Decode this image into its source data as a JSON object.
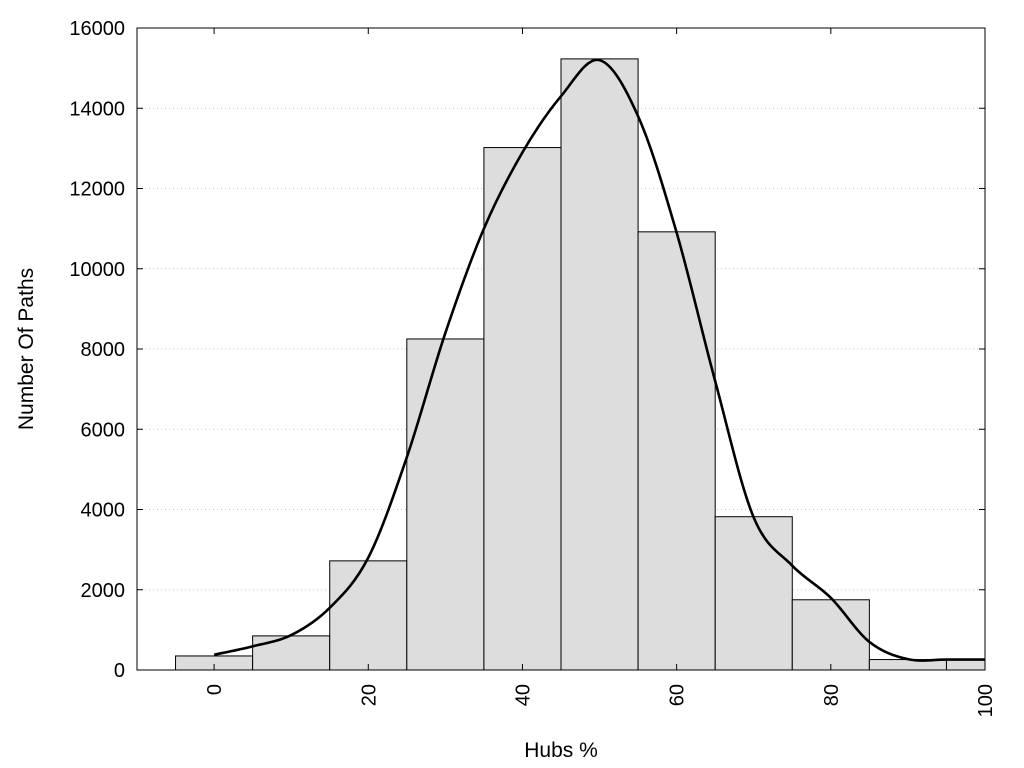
{
  "chart_data": {
    "type": "bar",
    "title": "",
    "xlabel": "Hubs %",
    "ylabel": "Number Of Paths",
    "xlim": [
      -10,
      100
    ],
    "ylim": [
      0,
      16000
    ],
    "x_ticks": [
      0,
      20,
      40,
      60,
      80,
      100
    ],
    "y_ticks": [
      0,
      2000,
      4000,
      6000,
      8000,
      10000,
      12000,
      14000,
      16000
    ],
    "x_tick_labels": [
      "0",
      "20",
      "40",
      "60",
      "80",
      "100"
    ],
    "y_tick_labels": [
      "0",
      "2000",
      "4000",
      "6000",
      "8000",
      "10000",
      "12000",
      "14000",
      "16000"
    ],
    "grid": "horizontal dotted",
    "legend": "none",
    "bin_width": 10,
    "bins": [
      {
        "center": 0,
        "value": 350
      },
      {
        "center": 10,
        "value": 850
      },
      {
        "center": 20,
        "value": 2720
      },
      {
        "center": 30,
        "value": 8250
      },
      {
        "center": 40,
        "value": 13020
      },
      {
        "center": 50,
        "value": 15230
      },
      {
        "center": 60,
        "value": 10920
      },
      {
        "center": 70,
        "value": 3820
      },
      {
        "center": 80,
        "value": 1750
      },
      {
        "center": 90,
        "value": 260
      },
      {
        "center": 100,
        "value": 260
      }
    ],
    "density_curve": [
      {
        "x": 0,
        "y": 380
      },
      {
        "x": 5,
        "y": 590
      },
      {
        "x": 10,
        "y": 870
      },
      {
        "x": 15,
        "y": 1550
      },
      {
        "x": 20,
        "y": 2800
      },
      {
        "x": 25,
        "y": 5300
      },
      {
        "x": 30,
        "y": 8400
      },
      {
        "x": 35,
        "y": 11000
      },
      {
        "x": 40,
        "y": 12900
      },
      {
        "x": 45,
        "y": 14300
      },
      {
        "x": 50,
        "y": 15200
      },
      {
        "x": 55,
        "y": 13800
      },
      {
        "x": 60,
        "y": 10900
      },
      {
        "x": 65,
        "y": 7200
      },
      {
        "x": 70,
        "y": 3800
      },
      {
        "x": 75,
        "y": 2600
      },
      {
        "x": 80,
        "y": 1800
      },
      {
        "x": 85,
        "y": 700
      },
      {
        "x": 90,
        "y": 270
      },
      {
        "x": 95,
        "y": 260
      },
      {
        "x": 100,
        "y": 260
      }
    ],
    "colors": {
      "bar_fill": "#dddddd",
      "bar_stroke": "#000000",
      "curve": "#000000",
      "grid": "#c8c8c8"
    }
  }
}
